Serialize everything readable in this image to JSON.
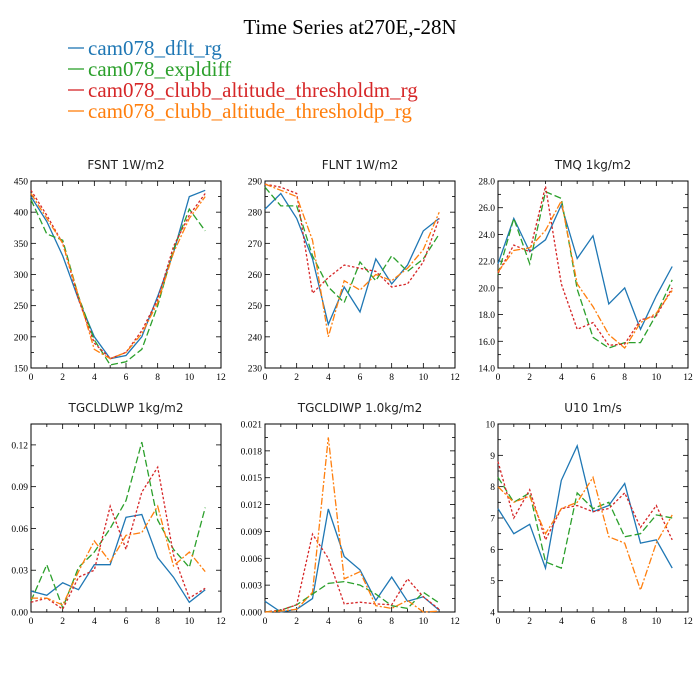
{
  "figure": {
    "title": "Time Series at270E,-28N"
  },
  "series_styles": [
    {
      "name": "cam078_dflt_rg",
      "color": "#1f77b4",
      "dash": ""
    },
    {
      "name": "cam078_expldiff",
      "color": "#2ca02c",
      "dash": "7,3"
    },
    {
      "name": "cam078_clubb_altitude_thresholdm_rg",
      "color": "#d62728",
      "dash": "2.5,2"
    },
    {
      "name": "cam078_clubb_altitude_thresholdp_rg",
      "color": "#ff7f0e",
      "dash": "7,2,2,2"
    }
  ],
  "chart_data": [
    {
      "type": "line",
      "title": "FSNT   1W/m2",
      "x": [
        0,
        1,
        2,
        3,
        4,
        5,
        6,
        7,
        8,
        9,
        10,
        11
      ],
      "xlim": [
        0,
        12
      ],
      "xticks": [
        0,
        2,
        4,
        6,
        8,
        10,
        12
      ],
      "ylim": [
        150,
        450
      ],
      "yticks": [
        150,
        200,
        250,
        300,
        350,
        400,
        450
      ],
      "ytick_labels": [
        "150",
        "200",
        "250",
        "300",
        "350",
        "400",
        "450"
      ],
      "series": [
        {
          "name": "cam078_dflt_rg",
          "values": [
            425,
            385,
            330,
            260,
            200,
            165,
            170,
            200,
            265,
            335,
            425,
            435
          ]
        },
        {
          "name": "cam078_expldiff",
          "values": [
            420,
            365,
            355,
            265,
            195,
            155,
            160,
            180,
            250,
            340,
            405,
            370
          ]
        },
        {
          "name": "cam078_clubb_altitude_thresholdm_rg",
          "values": [
            435,
            395,
            350,
            260,
            190,
            165,
            175,
            210,
            260,
            345,
            395,
            430
          ]
        },
        {
          "name": "cam078_clubb_altitude_thresholdp_rg",
          "values": [
            430,
            390,
            350,
            265,
            180,
            165,
            175,
            205,
            255,
            335,
            390,
            425
          ]
        }
      ]
    },
    {
      "type": "line",
      "title": "FLNT   1W/m2",
      "x": [
        0,
        1,
        2,
        3,
        4,
        5,
        6,
        7,
        8,
        9,
        10,
        11
      ],
      "xlim": [
        0,
        12
      ],
      "xticks": [
        0,
        2,
        4,
        6,
        8,
        10,
        12
      ],
      "ylim": [
        230,
        290
      ],
      "yticks": [
        230,
        240,
        250,
        260,
        270,
        280,
        290
      ],
      "ytick_labels": [
        "230",
        "240",
        "250",
        "260",
        "270",
        "280",
        "290"
      ],
      "series": [
        {
          "name": "cam078_dflt_rg",
          "values": [
            281,
            286,
            278,
            265,
            244,
            256,
            248,
            265,
            257,
            263,
            274,
            278
          ]
        },
        {
          "name": "cam078_expldiff",
          "values": [
            288,
            282,
            282,
            266,
            256,
            251,
            264,
            258,
            266,
            261,
            265,
            273
          ]
        },
        {
          "name": "cam078_clubb_altitude_thresholdm_rg",
          "values": [
            289,
            288,
            286,
            254,
            259,
            263,
            262,
            261,
            256,
            257,
            264,
            278
          ]
        },
        {
          "name": "cam078_clubb_altitude_thresholdp_rg",
          "values": [
            289,
            287,
            285,
            271,
            240,
            258,
            255,
            260,
            258,
            262,
            268,
            280
          ]
        }
      ]
    },
    {
      "type": "line",
      "title": "TMQ   1kg/m2",
      "x": [
        0,
        1,
        2,
        3,
        4,
        5,
        6,
        7,
        8,
        9,
        10,
        11
      ],
      "xlim": [
        0,
        12
      ],
      "xticks": [
        0,
        2,
        4,
        6,
        8,
        10,
        12
      ],
      "ylim": [
        14,
        28
      ],
      "yticks": [
        14,
        16,
        18,
        20,
        22,
        24,
        26,
        28
      ],
      "ytick_labels": [
        "14.0",
        "16.0",
        "18.0",
        "20.0",
        "22.0",
        "24.0",
        "26.0",
        "28.0"
      ],
      "series": [
        {
          "name": "cam078_dflt_rg",
          "values": [
            21.8,
            25.2,
            22.7,
            23.6,
            26.2,
            22.2,
            23.9,
            18.8,
            20.0,
            16.9,
            19.4,
            21.6
          ]
        },
        {
          "name": "cam078_expldiff",
          "values": [
            21.0,
            25.2,
            21.8,
            27.2,
            26.7,
            19.9,
            16.3,
            15.5,
            15.9,
            15.9,
            18.0,
            20.6
          ]
        },
        {
          "name": "cam078_clubb_altitude_thresholdm_rg",
          "values": [
            21.1,
            23.2,
            22.7,
            27.6,
            20.3,
            16.9,
            17.4,
            15.7,
            15.8,
            17.6,
            17.9,
            20.0
          ]
        },
        {
          "name": "cam078_clubb_altitude_thresholdp_rg",
          "values": [
            21.2,
            22.8,
            23.0,
            24.3,
            26.5,
            20.3,
            18.6,
            16.5,
            15.5,
            17.4,
            18.1,
            19.8
          ]
        }
      ]
    },
    {
      "type": "line",
      "title": "TGCLDLWP   1kg/m2",
      "x": [
        0,
        1,
        2,
        3,
        4,
        5,
        6,
        7,
        8,
        9,
        10,
        11
      ],
      "xlim": [
        0,
        12
      ],
      "xticks": [
        0,
        2,
        4,
        6,
        8,
        10,
        12
      ],
      "ylim": [
        0,
        0.135
      ],
      "yticks": [
        0,
        0.03,
        0.06,
        0.09,
        0.12
      ],
      "ytick_labels": [
        "0.00",
        "0.03",
        "0.06",
        "0.09",
        "0.12"
      ],
      "series": [
        {
          "name": "cam078_dflt_rg",
          "values": [
            0.015,
            0.012,
            0.021,
            0.016,
            0.034,
            0.034,
            0.068,
            0.07,
            0.039,
            0.025,
            0.007,
            0.016
          ]
        },
        {
          "name": "cam078_expldiff",
          "values": [
            0.008,
            0.034,
            0.003,
            0.032,
            0.043,
            0.06,
            0.08,
            0.122,
            0.066,
            0.045,
            0.032,
            0.075
          ]
        },
        {
          "name": "cam078_clubb_altitude_thresholdm_rg",
          "values": [
            0.007,
            0.01,
            0.002,
            0.025,
            0.03,
            0.076,
            0.045,
            0.086,
            0.104,
            0.041,
            0.01,
            0.017
          ]
        },
        {
          "name": "cam078_clubb_altitude_thresholdp_rg",
          "values": [
            0.01,
            0.01,
            0.005,
            0.029,
            0.051,
            0.036,
            0.055,
            0.057,
            0.076,
            0.033,
            0.043,
            0.029
          ]
        }
      ]
    },
    {
      "type": "line",
      "title": "TGCLDIWP   1.0kg/m2",
      "x": [
        0,
        1,
        2,
        3,
        4,
        5,
        6,
        7,
        8,
        9,
        10,
        11
      ],
      "xlim": [
        0,
        12
      ],
      "xticks": [
        0,
        2,
        4,
        6,
        8,
        10,
        12
      ],
      "ylim": [
        0,
        0.021
      ],
      "yticks": [
        0,
        0.003,
        0.006,
        0.009,
        0.012,
        0.015,
        0.018,
        0.021
      ],
      "ytick_labels": [
        "0.000",
        "0.003",
        "0.006",
        "0.009",
        "0.012",
        "0.015",
        "0.018",
        "0.021"
      ],
      "series": [
        {
          "name": "cam078_dflt_rg",
          "values": [
            0.0012,
            0.0,
            0.0003,
            0.0015,
            0.0115,
            0.0062,
            0.0047,
            0.0013,
            0.0039,
            0.0012,
            0.0017,
            0.0002
          ]
        },
        {
          "name": "cam078_expldiff",
          "values": [
            0.0,
            0.0002,
            0.0008,
            0.002,
            0.0032,
            0.0034,
            0.003,
            0.002,
            0.0007,
            0.0004,
            0.0022,
            0.001
          ]
        },
        {
          "name": "cam078_clubb_altitude_thresholdm_rg",
          "values": [
            0.0,
            0.0002,
            0.0008,
            0.0087,
            0.006,
            0.0009,
            0.0011,
            0.0009,
            0.0008,
            0.0037,
            0.0017,
            0.0003
          ]
        },
        {
          "name": "cam078_clubb_altitude_thresholdp_rg",
          "values": [
            0.0,
            0.0001,
            0.0003,
            0.0022,
            0.0195,
            0.0037,
            0.0045,
            0.0007,
            0.0004,
            0.0013,
            0.0,
            0.0001
          ]
        }
      ]
    },
    {
      "type": "line",
      "title": "U10   1m/s",
      "x": [
        0,
        1,
        2,
        3,
        4,
        5,
        6,
        7,
        8,
        9,
        10,
        11
      ],
      "xlim": [
        0,
        12
      ],
      "xticks": [
        0,
        2,
        4,
        6,
        8,
        10,
        12
      ],
      "ylim": [
        4,
        10
      ],
      "yticks": [
        4,
        5,
        6,
        7,
        8,
        9,
        10
      ],
      "ytick_labels": [
        "4",
        "5",
        "6",
        "7",
        "8",
        "9",
        "10"
      ],
      "series": [
        {
          "name": "cam078_dflt_rg",
          "values": [
            7.3,
            6.5,
            6.8,
            5.4,
            8.2,
            9.3,
            7.2,
            7.4,
            8.1,
            6.2,
            6.3,
            5.4
          ]
        },
        {
          "name": "cam078_expldiff",
          "values": [
            8.3,
            7.5,
            7.8,
            5.6,
            5.4,
            7.8,
            7.3,
            7.5,
            6.4,
            6.5,
            7.1,
            7.0
          ]
        },
        {
          "name": "cam078_clubb_altitude_thresholdm_rg",
          "values": [
            8.8,
            7.0,
            7.9,
            6.3,
            7.3,
            7.4,
            7.2,
            7.3,
            7.8,
            6.7,
            7.4,
            6.3
          ]
        },
        {
          "name": "cam078_clubb_altitude_thresholdp_rg",
          "values": [
            8.0,
            7.5,
            7.7,
            6.5,
            7.3,
            7.5,
            8.3,
            6.4,
            6.2,
            4.7,
            6.2,
            7.1
          ]
        }
      ]
    }
  ]
}
